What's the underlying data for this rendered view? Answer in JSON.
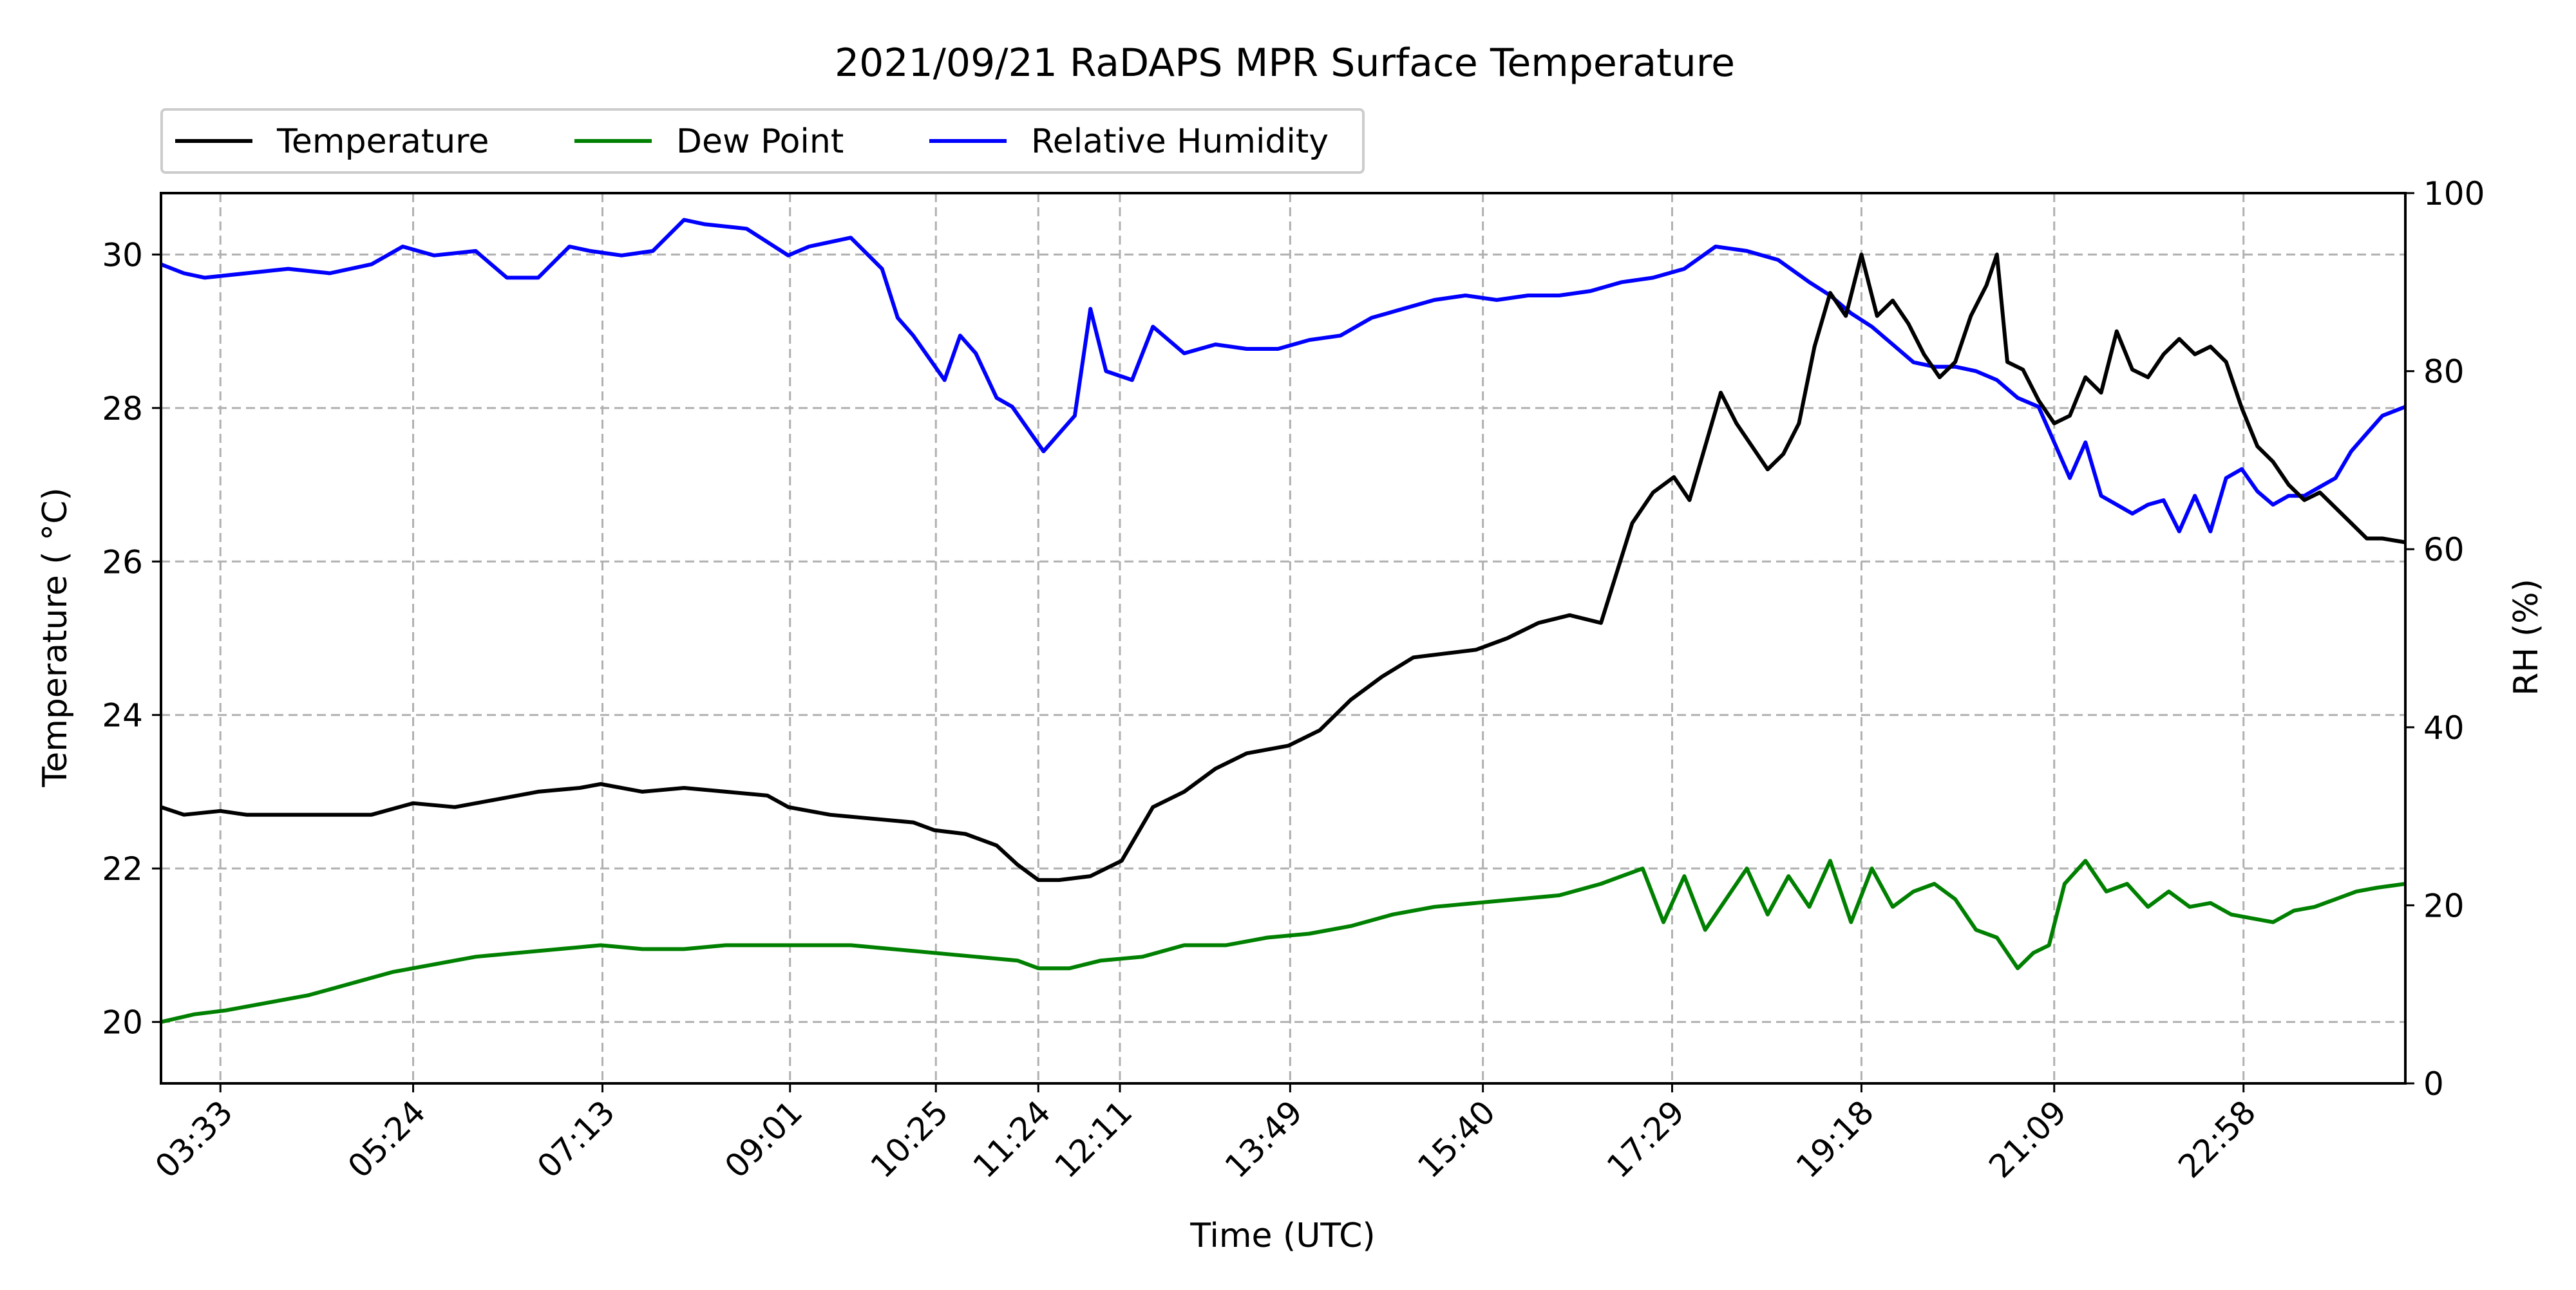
{
  "chart_data": {
    "type": "line",
    "title": "2021/09/21 RaDAPS MPR Surface Temperature",
    "xlabel": "Time (UTC)",
    "ylabel_left": "Temperature ($^\\circ$C)",
    "ylabel_left_display": "Temperature ( °C)",
    "ylabel_right": "RH (%)",
    "x_range_hours": [
      2.98,
      24.52
    ],
    "x_ticks": [
      {
        "label": "03:33",
        "hour": 3.55
      },
      {
        "label": "05:24",
        "hour": 5.4
      },
      {
        "label": "07:13",
        "hour": 7.217
      },
      {
        "label": "09:01",
        "hour": 9.017
      },
      {
        "label": "10:25",
        "hour": 10.417
      },
      {
        "label": "11:24",
        "hour": 11.4
      },
      {
        "label": "12:11",
        "hour": 12.183
      },
      {
        "label": "13:49",
        "hour": 13.817
      },
      {
        "label": "15:40",
        "hour": 15.667
      },
      {
        "label": "17:29",
        "hour": 17.483
      },
      {
        "label": "19:18",
        "hour": 19.3
      },
      {
        "label": "21:09",
        "hour": 21.15
      },
      {
        "label": "22:58",
        "hour": 22.967
      }
    ],
    "ylim_left": [
      19.2,
      30.8
    ],
    "yticks_left": [
      20,
      22,
      24,
      26,
      28,
      30
    ],
    "ylim_right": [
      0,
      100
    ],
    "yticks_right": [
      0,
      20,
      40,
      60,
      80,
      100
    ],
    "grid": true,
    "legend_position": "top-left, above plot",
    "series": [
      {
        "name": "Temperature",
        "axis": "left",
        "color": "#000000",
        "x": [
          2.98,
          3.2,
          3.55,
          3.8,
          4.2,
          4.6,
          5.0,
          5.4,
          5.8,
          6.2,
          6.6,
          7.0,
          7.2,
          7.6,
          8.0,
          8.4,
          8.8,
          9.0,
          9.4,
          9.8,
          10.2,
          10.4,
          10.7,
          11.0,
          11.2,
          11.4,
          11.6,
          11.9,
          12.2,
          12.5,
          12.8,
          13.1,
          13.4,
          13.8,
          14.1,
          14.4,
          14.7,
          15.0,
          15.3,
          15.6,
          15.9,
          16.2,
          16.5,
          16.8,
          17.1,
          17.3,
          17.5,
          17.65,
          17.8,
          17.95,
          18.1,
          18.25,
          18.4,
          18.55,
          18.7,
          18.85,
          19.0,
          19.15,
          19.3,
          19.45,
          19.6,
          19.75,
          19.9,
          20.05,
          20.2,
          20.35,
          20.5,
          20.6,
          20.7,
          20.85,
          21.0,
          21.15,
          21.3,
          21.45,
          21.6,
          21.75,
          21.9,
          22.05,
          22.2,
          22.35,
          22.5,
          22.65,
          22.8,
          22.95,
          23.1,
          23.25,
          23.4,
          23.55,
          23.7,
          23.85,
          24.0,
          24.15,
          24.3,
          24.52
        ],
        "values": [
          22.8,
          22.7,
          22.75,
          22.7,
          22.7,
          22.7,
          22.7,
          22.85,
          22.8,
          22.9,
          23.0,
          23.05,
          23.1,
          23.0,
          23.05,
          23.0,
          22.95,
          22.8,
          22.7,
          22.65,
          22.6,
          22.5,
          22.45,
          22.3,
          22.05,
          21.85,
          21.85,
          21.9,
          22.1,
          22.8,
          23.0,
          23.3,
          23.5,
          23.6,
          23.8,
          24.2,
          24.5,
          24.75,
          24.8,
          24.85,
          25.0,
          25.2,
          25.3,
          25.2,
          26.5,
          26.9,
          27.1,
          26.8,
          27.5,
          28.2,
          27.8,
          27.5,
          27.2,
          27.4,
          27.8,
          28.8,
          29.5,
          29.2,
          30.0,
          29.2,
          29.4,
          29.1,
          28.7,
          28.4,
          28.6,
          29.2,
          29.6,
          30.0,
          28.6,
          28.5,
          28.1,
          27.8,
          27.9,
          28.4,
          28.2,
          29.0,
          28.5,
          28.4,
          28.7,
          28.9,
          28.7,
          28.8,
          28.6,
          28.0,
          27.5,
          27.3,
          27.0,
          26.8,
          26.9,
          26.7,
          26.5,
          26.3,
          26.3,
          26.25
        ]
      },
      {
        "name": "Dew Point",
        "axis": "left",
        "color": "#008000",
        "x": [
          2.98,
          3.3,
          3.6,
          4.0,
          4.4,
          4.8,
          5.2,
          5.6,
          6.0,
          6.4,
          6.8,
          7.2,
          7.6,
          8.0,
          8.4,
          8.8,
          9.2,
          9.6,
          10.0,
          10.4,
          10.8,
          11.2,
          11.4,
          11.7,
          12.0,
          12.4,
          12.8,
          13.2,
          13.6,
          14.0,
          14.4,
          14.8,
          15.2,
          15.6,
          16.0,
          16.4,
          16.8,
          17.0,
          17.2,
          17.4,
          17.6,
          17.8,
          18.0,
          18.2,
          18.4,
          18.6,
          18.8,
          19.0,
          19.2,
          19.4,
          19.6,
          19.8,
          20.0,
          20.2,
          20.4,
          20.6,
          20.8,
          20.95,
          21.1,
          21.25,
          21.45,
          21.65,
          21.85,
          22.05,
          22.25,
          22.45,
          22.65,
          22.85,
          23.05,
          23.25,
          23.45,
          23.65,
          23.85,
          24.05,
          24.25,
          24.52
        ],
        "values": [
          20.0,
          20.1,
          20.15,
          20.25,
          20.35,
          20.5,
          20.65,
          20.75,
          20.85,
          20.9,
          20.95,
          21.0,
          20.95,
          20.95,
          21.0,
          21.0,
          21.0,
          21.0,
          20.95,
          20.9,
          20.85,
          20.8,
          20.7,
          20.7,
          20.8,
          20.85,
          21.0,
          21.0,
          21.1,
          21.15,
          21.25,
          21.4,
          21.5,
          21.55,
          21.6,
          21.65,
          21.8,
          21.9,
          22.0,
          21.3,
          21.9,
          21.2,
          21.6,
          22.0,
          21.4,
          21.9,
          21.5,
          22.1,
          21.3,
          22.0,
          21.5,
          21.7,
          21.8,
          21.6,
          21.2,
          21.1,
          20.7,
          20.9,
          21.0,
          21.8,
          22.1,
          21.7,
          21.8,
          21.5,
          21.7,
          21.5,
          21.55,
          21.4,
          21.35,
          21.3,
          21.45,
          21.5,
          21.6,
          21.7,
          21.75,
          21.8
        ]
      },
      {
        "name": "Relative Humidity",
        "axis": "right",
        "color": "#0000ff",
        "x": [
          2.98,
          3.2,
          3.4,
          3.8,
          4.2,
          4.6,
          5.0,
          5.3,
          5.6,
          6.0,
          6.3,
          6.6,
          6.9,
          7.1,
          7.4,
          7.7,
          8.0,
          8.2,
          8.6,
          9.0,
          9.2,
          9.6,
          9.9,
          10.05,
          10.2,
          10.35,
          10.5,
          10.65,
          10.8,
          11.0,
          11.15,
          11.3,
          11.45,
          11.6,
          11.75,
          11.9,
          12.05,
          12.3,
          12.5,
          12.8,
          13.1,
          13.4,
          13.7,
          14.0,
          14.3,
          14.6,
          14.9,
          15.2,
          15.5,
          15.8,
          16.1,
          16.4,
          16.7,
          17.0,
          17.3,
          17.6,
          17.9,
          18.2,
          18.5,
          18.8,
          19.0,
          19.2,
          19.4,
          19.6,
          19.8,
          20.0,
          20.2,
          20.4,
          20.6,
          20.8,
          21.0,
          21.15,
          21.3,
          21.45,
          21.6,
          21.75,
          21.9,
          22.05,
          22.2,
          22.35,
          22.5,
          22.65,
          22.8,
          22.95,
          23.1,
          23.25,
          23.4,
          23.55,
          23.7,
          23.85,
          24.0,
          24.15,
          24.3,
          24.52
        ],
        "values": [
          92,
          91,
          90.5,
          91,
          91.5,
          91,
          92,
          94,
          93,
          93.5,
          90.5,
          90.5,
          94,
          93.5,
          93,
          93.5,
          97,
          96.5,
          96,
          93,
          94,
          95,
          91.5,
          86,
          84,
          81.5,
          79,
          84,
          82,
          77,
          76,
          73.5,
          71,
          73,
          75,
          87,
          80,
          79,
          85,
          82,
          83,
          82.5,
          82.5,
          83.5,
          84,
          86,
          87,
          88,
          88.5,
          88,
          88.5,
          88.5,
          89,
          90,
          90.5,
          91.5,
          94,
          93.5,
          92.5,
          90,
          88.5,
          86.5,
          85,
          83,
          81,
          80.5,
          80.5,
          80,
          79,
          77,
          76,
          72,
          68,
          72,
          66,
          65,
          64,
          65,
          65.5,
          62,
          66,
          62,
          68,
          69,
          66.5,
          65,
          66,
          66,
          67,
          68,
          71,
          73,
          75,
          76
        ]
      }
    ]
  }
}
